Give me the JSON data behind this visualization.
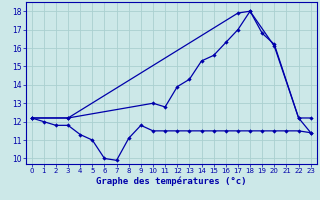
{
  "title": "Graphe des températures (°c)",
  "background_color": "#cce8e8",
  "grid_color": "#aad0d0",
  "line_color": "#0000aa",
  "xlim": [
    -0.5,
    23.5
  ],
  "ylim": [
    9.7,
    18.5
  ],
  "xticks": [
    0,
    1,
    2,
    3,
    4,
    5,
    6,
    7,
    8,
    9,
    10,
    11,
    12,
    13,
    14,
    15,
    16,
    17,
    18,
    19,
    20,
    21,
    22,
    23
  ],
  "yticks": [
    10,
    11,
    12,
    13,
    14,
    15,
    16,
    17,
    18
  ],
  "line1_x": [
    0,
    1,
    2,
    3,
    4,
    5,
    6,
    7,
    8,
    9,
    10,
    11,
    12,
    13,
    14,
    15,
    16,
    17,
    18,
    19,
    20,
    21,
    22,
    23
  ],
  "line1_y": [
    12.2,
    12.0,
    11.8,
    11.8,
    11.3,
    11.0,
    10.0,
    9.9,
    11.1,
    11.8,
    11.5,
    11.5,
    11.5,
    11.5,
    11.5,
    11.5,
    11.5,
    11.5,
    11.5,
    11.5,
    11.5,
    11.5,
    11.5,
    11.4
  ],
  "line2_x": [
    0,
    3,
    10,
    11,
    12,
    13,
    14,
    15,
    16,
    17,
    18,
    19,
    20,
    22,
    23
  ],
  "line2_y": [
    12.2,
    12.2,
    13.0,
    12.8,
    13.9,
    14.3,
    15.3,
    15.6,
    16.3,
    17.0,
    18.0,
    16.8,
    16.2,
    12.2,
    12.2
  ],
  "line3_x": [
    0,
    3,
    17,
    18,
    20,
    22,
    23
  ],
  "line3_y": [
    12.2,
    12.2,
    17.9,
    18.0,
    16.1,
    12.2,
    11.4
  ]
}
